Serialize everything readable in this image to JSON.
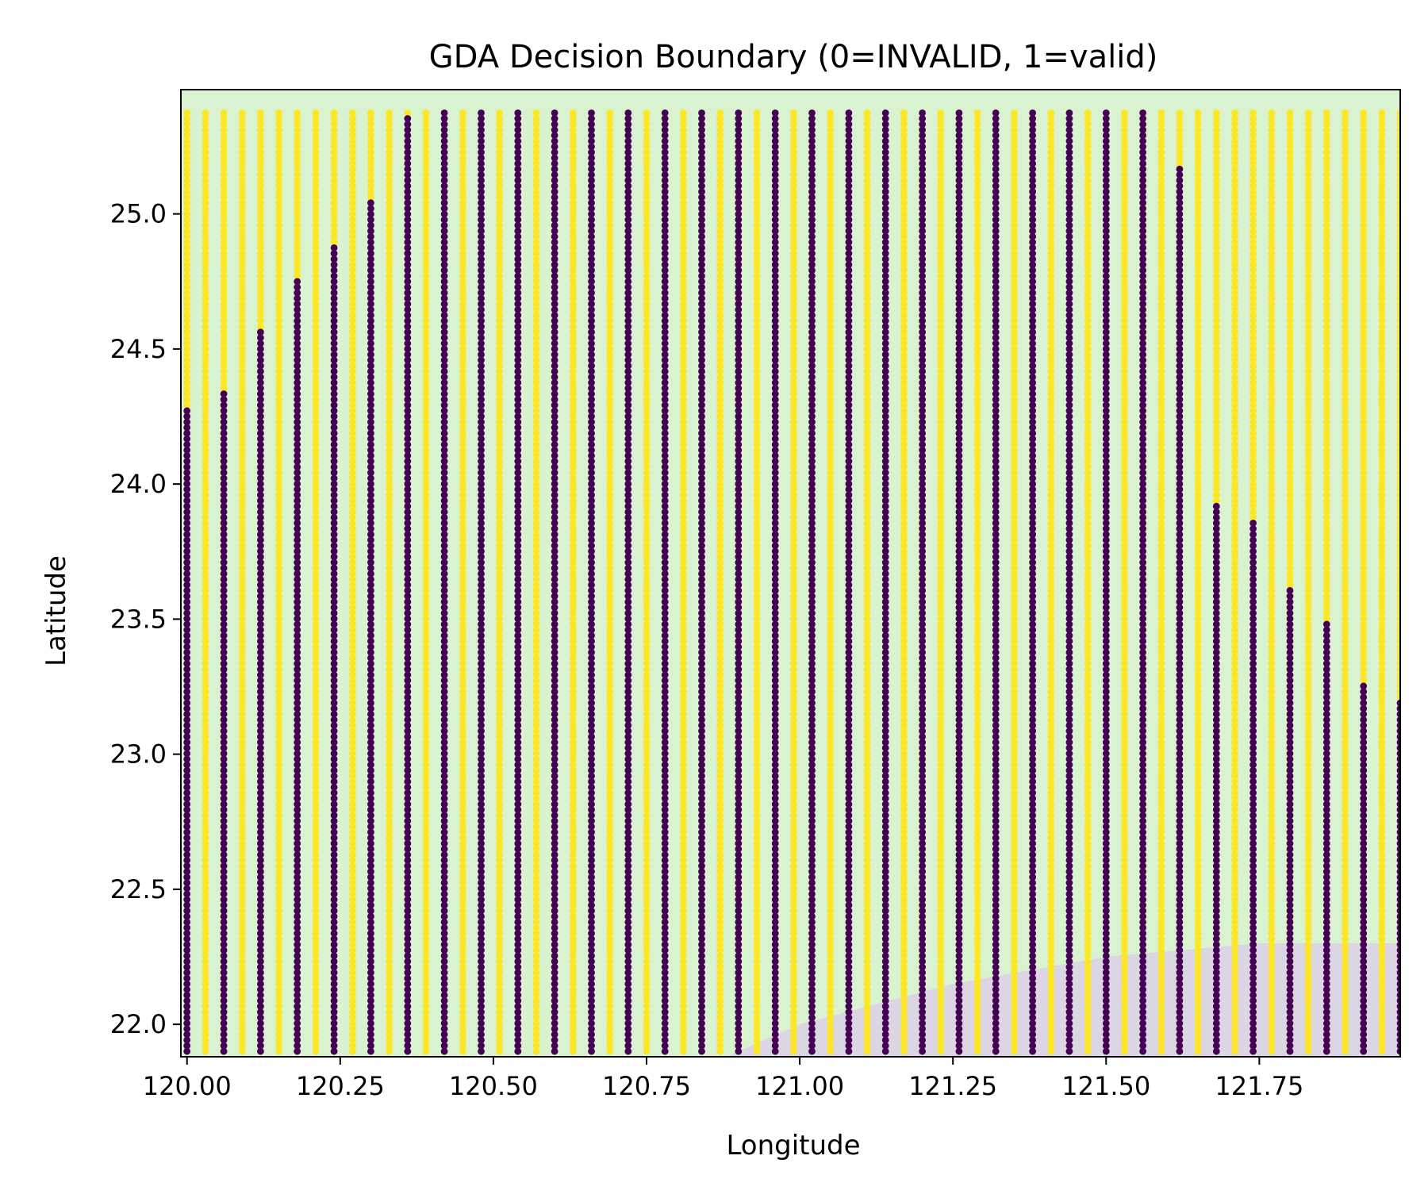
{
  "chart_data": {
    "type": "scatter",
    "title": "GDA Decision Boundary (0=INVALID, 1=valid)",
    "xlabel": "Longitude",
    "ylabel": "Latitude",
    "xlim": [
      119.99,
      121.98
    ],
    "ylim": [
      21.88,
      25.46
    ],
    "x_ticks": [
      120.0,
      120.25,
      120.5,
      120.75,
      121.0,
      121.25,
      121.5,
      121.75
    ],
    "x_tick_labels": [
      "120.00",
      "120.25",
      "120.50",
      "120.75",
      "121.00",
      "121.25",
      "121.50",
      "121.75"
    ],
    "y_ticks": [
      22.0,
      22.5,
      23.0,
      23.5,
      24.0,
      24.5,
      25.0
    ],
    "y_tick_labels": [
      "22.0",
      "22.5",
      "23.0",
      "23.5",
      "24.0",
      "24.5",
      "25.0"
    ],
    "grid": false,
    "legend": "none",
    "colors": {
      "class_0": "#440154",
      "class_1": "#fde725",
      "region_0_fill": "#dcd6e4",
      "region_1_fill": "#d9f2d0"
    },
    "decision_boundary": {
      "region_below_label": 0,
      "region_above_label": 1,
      "boundary_points": [
        [
          120.88,
          21.88
        ],
        [
          121.0,
          22.0
        ],
        [
          121.25,
          22.15
        ],
        [
          121.5,
          22.25
        ],
        [
          121.75,
          22.3
        ],
        [
          121.98,
          22.3
        ]
      ]
    },
    "sample_grid": {
      "x_start": 120.0,
      "x_step": 0.03,
      "x_count": 67,
      "y_start": 21.9,
      "y_step": 0.0208,
      "y_count": 168
    },
    "class_0_columns": [
      {
        "x": 120.0,
        "y_max": 24.28
      },
      {
        "x": 120.06,
        "y_max": 24.34
      },
      {
        "x": 120.12,
        "y_max": 24.58
      },
      {
        "x": 120.18,
        "y_max": 24.76
      },
      {
        "x": 120.24,
        "y_max": 24.88
      },
      {
        "x": 120.3,
        "y_max": 25.06
      },
      {
        "x": 120.36,
        "y_max": 25.36
      },
      {
        "x": 120.42,
        "y_max": 25.42
      },
      {
        "x": 120.48,
        "y_max": 25.42
      },
      {
        "x": 120.54,
        "y_max": 25.42
      },
      {
        "x": 120.6,
        "y_max": 25.42
      },
      {
        "x": 120.66,
        "y_max": 25.42
      },
      {
        "x": 120.72,
        "y_max": 25.42
      },
      {
        "x": 120.78,
        "y_max": 25.42
      },
      {
        "x": 120.84,
        "y_max": 25.42
      },
      {
        "x": 120.9,
        "y_max": 25.42
      },
      {
        "x": 120.96,
        "y_max": 25.42
      },
      {
        "x": 121.02,
        "y_max": 25.42
      },
      {
        "x": 121.08,
        "y_max": 25.42
      },
      {
        "x": 121.14,
        "y_max": 25.42
      },
      {
        "x": 121.2,
        "y_max": 25.42
      },
      {
        "x": 121.26,
        "y_max": 25.42
      },
      {
        "x": 121.32,
        "y_max": 25.42
      },
      {
        "x": 121.38,
        "y_max": 25.42
      },
      {
        "x": 121.44,
        "y_max": 25.42
      },
      {
        "x": 121.5,
        "y_max": 25.42
      },
      {
        "x": 121.56,
        "y_max": 25.42
      },
      {
        "x": 121.62,
        "y_max": 25.18
      },
      {
        "x": 121.68,
        "y_max": 23.92
      },
      {
        "x": 121.74,
        "y_max": 23.86
      },
      {
        "x": 121.8,
        "y_max": 23.62
      },
      {
        "x": 121.86,
        "y_max": 23.5
      },
      {
        "x": 121.92,
        "y_max": 23.26
      },
      {
        "x": 121.98,
        "y_max": 23.2
      }
    ]
  }
}
